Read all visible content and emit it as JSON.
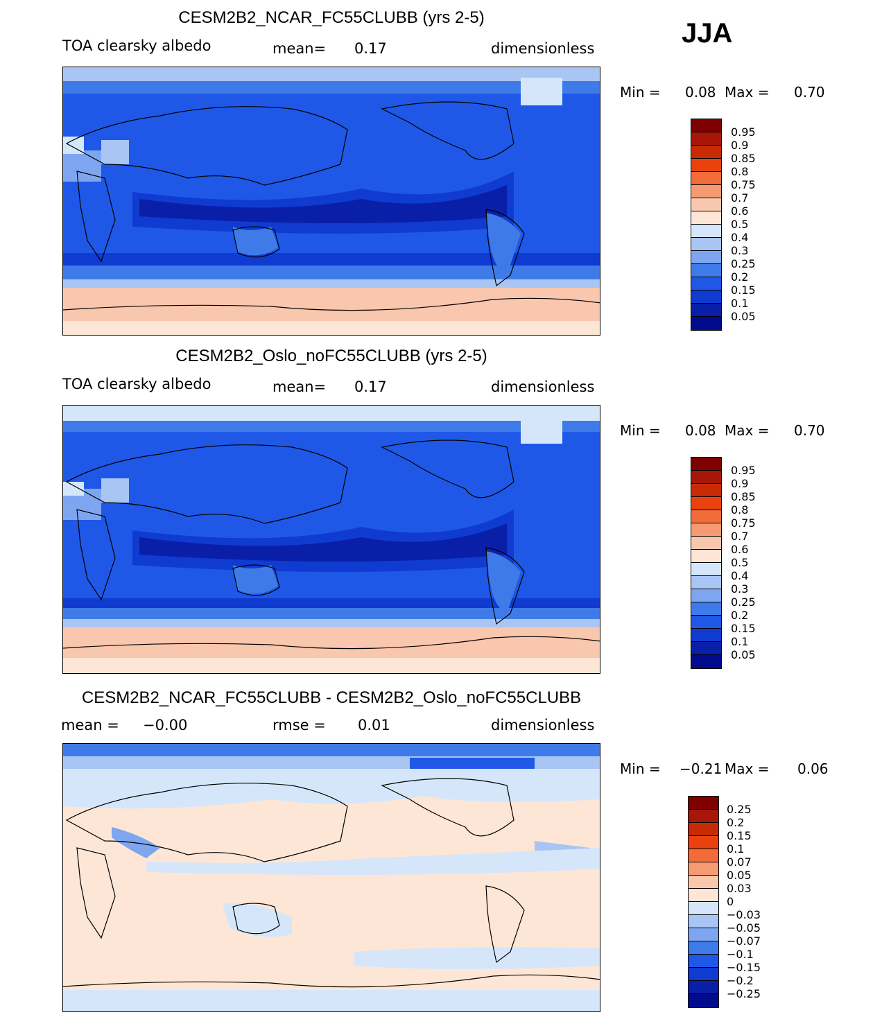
{
  "season": "JJA",
  "colors": {
    "levels_abs": [
      "#000b8d",
      "#0a1fa8",
      "#0f3bd0",
      "#1f58e6",
      "#3f7be8",
      "#7ea6f0",
      "#a8c5f4",
      "#d5e6fb",
      "#fde6d6",
      "#f9c6ae",
      "#f59a73",
      "#f26b3a",
      "#e9420f",
      "#c92a06",
      "#a8160a",
      "#7e0000"
    ],
    "levels_diff": [
      "#000b8d",
      "#0a1fa8",
      "#0f3bd0",
      "#1f58e6",
      "#3f7be8",
      "#7ea6f0",
      "#a8c5f4",
      "#d5e6fb",
      "#fde6d6",
      "#f9c6ae",
      "#f59a73",
      "#f26b3a",
      "#e9420f",
      "#c92a06",
      "#a8160a",
      "#7e0000"
    ]
  },
  "chart_data": [
    {
      "type": "heatmap",
      "title": "CESM2B2_NCAR_FC55CLUBB (yrs 2-5)",
      "variable": "TOA clearsky albedo",
      "stat_label": "mean=",
      "stat_value": "0.17",
      "units": "dimensionless",
      "min_label": "Min =",
      "min_value": "0.08",
      "max_label": "Max =",
      "max_value": "0.70",
      "colorbar_ticks": [
        "0.95",
        "0.9",
        "0.85",
        "0.8",
        "0.75",
        "0.7",
        "0.6",
        "0.5",
        "0.4",
        "0.3",
        "0.25",
        "0.2",
        "0.15",
        "0.1",
        "0.05"
      ]
    },
    {
      "type": "heatmap",
      "title": "CESM2B2_Oslo_noFC55CLUBB (yrs 2-5)",
      "variable": "TOA clearsky albedo",
      "stat_label": "mean=",
      "stat_value": "0.17",
      "units": "dimensionless",
      "min_label": "Min =",
      "min_value": "0.08",
      "max_label": "Max =",
      "max_value": "0.70",
      "colorbar_ticks": [
        "0.95",
        "0.9",
        "0.85",
        "0.8",
        "0.75",
        "0.7",
        "0.6",
        "0.5",
        "0.4",
        "0.3",
        "0.25",
        "0.2",
        "0.15",
        "0.1",
        "0.05"
      ]
    },
    {
      "type": "heatmap",
      "title": "CESM2B2_NCAR_FC55CLUBB - CESM2B2_Oslo_noFC55CLUBB",
      "variable_label": "mean =",
      "variable_value": "−0.00",
      "stat_label": "rmse =",
      "stat_value": "0.01",
      "units": "dimensionless",
      "min_label": "Min =",
      "min_value": "−0.21",
      "max_label": "Max =",
      "max_value": "0.06",
      "colorbar_ticks": [
        "0.25",
        "0.2",
        "0.15",
        "0.1",
        "0.07",
        "0.05",
        "0.03",
        "0",
        "−0.03",
        "−0.05",
        "−0.07",
        "−0.1",
        "−0.15",
        "−0.2",
        "−0.25"
      ]
    }
  ]
}
